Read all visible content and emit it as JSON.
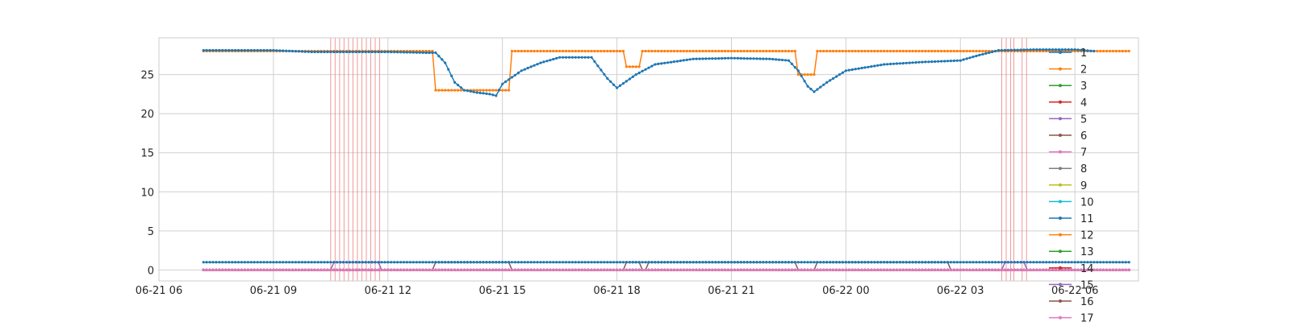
{
  "chart_data": {
    "type": "line",
    "title": "",
    "xlabel": "",
    "ylabel": "",
    "x_axis": {
      "type": "time",
      "range": [
        "2024-06-21 06:00",
        "2024-06-22 07:40"
      ],
      "tick_values": [
        "2024-06-21 06:00",
        "2024-06-21 09:00",
        "2024-06-21 12:00",
        "2024-06-21 15:00",
        "2024-06-21 18:00",
        "2024-06-21 21:00",
        "2024-06-22 00:00",
        "2024-06-22 03:00",
        "2024-06-22 06:00"
      ],
      "tick_labels": [
        "06-21 06",
        "06-21 09",
        "06-21 12",
        "06-21 15",
        "06-21 18",
        "06-21 21",
        "06-22 00",
        "06-22 03",
        "06-22 06"
      ]
    },
    "y_axis": {
      "range": [
        -1.4,
        29.7
      ],
      "tick_values": [
        0,
        5,
        10,
        15,
        20,
        25
      ],
      "tick_labels": [
        "0",
        "5",
        "10",
        "15",
        "20",
        "25"
      ]
    },
    "grid": true,
    "legend_placement": "right",
    "vertical_markers": {
      "color": "#f08080",
      "times": [
        "2024-06-21 10:30",
        "2024-06-21 10:37",
        "2024-06-21 10:44",
        "2024-06-21 10:51",
        "2024-06-21 10:58",
        "2024-06-21 11:05",
        "2024-06-21 11:12",
        "2024-06-21 11:19",
        "2024-06-21 11:26",
        "2024-06-21 11:33",
        "2024-06-21 11:40",
        "2024-06-21 11:47",
        "2024-06-22 04:05",
        "2024-06-22 04:12",
        "2024-06-22 04:19",
        "2024-06-22 04:24",
        "2024-06-22 04:37",
        "2024-06-22 04:44"
      ]
    },
    "series": [
      {
        "name": "1",
        "color": "#1f77b4",
        "points": [
          [
            "2024-06-21 07:10",
            28.1
          ],
          [
            "2024-06-21 09:00",
            28.1
          ],
          [
            "2024-06-21 10:00",
            27.9
          ],
          [
            "2024-06-21 12:00",
            27.9
          ],
          [
            "2024-06-21 13:00",
            27.8
          ],
          [
            "2024-06-21 13:15",
            27.8
          ],
          [
            "2024-06-21 13:30",
            26.5
          ],
          [
            "2024-06-21 13:45",
            24.0
          ],
          [
            "2024-06-21 14:00",
            23.0
          ],
          [
            "2024-06-21 14:20",
            22.7
          ],
          [
            "2024-06-21 14:40",
            22.5
          ],
          [
            "2024-06-21 14:50",
            22.3
          ],
          [
            "2024-06-21 15:00",
            23.8
          ],
          [
            "2024-06-21 15:30",
            25.5
          ],
          [
            "2024-06-21 16:00",
            26.5
          ],
          [
            "2024-06-21 16:30",
            27.2
          ],
          [
            "2024-06-21 17:00",
            27.2
          ],
          [
            "2024-06-21 17:20",
            27.2
          ],
          [
            "2024-06-21 17:45",
            24.5
          ],
          [
            "2024-06-21 18:00",
            23.3
          ],
          [
            "2024-06-21 18:30",
            25.0
          ],
          [
            "2024-06-21 19:00",
            26.3
          ],
          [
            "2024-06-21 20:00",
            27.0
          ],
          [
            "2024-06-21 21:00",
            27.1
          ],
          [
            "2024-06-21 22:00",
            27.0
          ],
          [
            "2024-06-21 22:30",
            26.8
          ],
          [
            "2024-06-21 22:45",
            25.5
          ],
          [
            "2024-06-21 23:00",
            23.5
          ],
          [
            "2024-06-21 23:10",
            22.8
          ],
          [
            "2024-06-21 23:30",
            24.0
          ],
          [
            "2024-06-22 00:00",
            25.5
          ],
          [
            "2024-06-22 01:00",
            26.3
          ],
          [
            "2024-06-22 02:00",
            26.6
          ],
          [
            "2024-06-22 03:00",
            26.8
          ],
          [
            "2024-06-22 03:30",
            27.5
          ],
          [
            "2024-06-22 04:00",
            28.1
          ],
          [
            "2024-06-22 05:00",
            28.2
          ],
          [
            "2024-06-22 06:00",
            28.2
          ],
          [
            "2024-06-22 06:30",
            28.0
          ]
        ]
      },
      {
        "name": "2",
        "color": "#ff7f0e",
        "points": [
          [
            "2024-06-21 07:10",
            28.0
          ],
          [
            "2024-06-21 13:10",
            28.0
          ],
          [
            "2024-06-21 13:15",
            23.0
          ],
          [
            "2024-06-21 15:10",
            23.0
          ],
          [
            "2024-06-21 15:15",
            28.0
          ],
          [
            "2024-06-21 18:10",
            28.0
          ],
          [
            "2024-06-21 18:15",
            26.0
          ],
          [
            "2024-06-21 18:35",
            26.0
          ],
          [
            "2024-06-21 18:40",
            28.0
          ],
          [
            "2024-06-21 22:40",
            28.0
          ],
          [
            "2024-06-21 22:45",
            25.0
          ],
          [
            "2024-06-21 23:10",
            25.0
          ],
          [
            "2024-06-21 23:15",
            28.0
          ],
          [
            "2024-06-22 07:25",
            28.0
          ]
        ]
      },
      {
        "name": "3",
        "color": "#2ca02c",
        "points": [
          [
            "2024-06-21 07:10",
            0
          ],
          [
            "2024-06-22 07:25",
            0
          ]
        ]
      },
      {
        "name": "4",
        "color": "#d62728",
        "points": [
          [
            "2024-06-21 07:10",
            0
          ],
          [
            "2024-06-22 07:25",
            0
          ]
        ]
      },
      {
        "name": "5",
        "color": "#9467bd",
        "points": [
          [
            "2024-06-21 07:10",
            0
          ],
          [
            "2024-06-21 10:30",
            0
          ],
          [
            "2024-06-21 10:35",
            1
          ],
          [
            "2024-06-21 11:45",
            1
          ],
          [
            "2024-06-21 11:50",
            0
          ],
          [
            "2024-06-22 04:05",
            0
          ],
          [
            "2024-06-22 04:10",
            1
          ],
          [
            "2024-06-22 04:40",
            1
          ],
          [
            "2024-06-22 04:45",
            0
          ],
          [
            "2024-06-22 07:25",
            0
          ]
        ]
      },
      {
        "name": "6",
        "color": "#8c564b",
        "points": [
          [
            "2024-06-21 07:10",
            0
          ],
          [
            "2024-06-21 13:10",
            0
          ],
          [
            "2024-06-21 13:15",
            1
          ],
          [
            "2024-06-21 15:10",
            1
          ],
          [
            "2024-06-21 15:15",
            0
          ],
          [
            "2024-06-21 18:10",
            0
          ],
          [
            "2024-06-21 18:15",
            1
          ],
          [
            "2024-06-21 18:35",
            1
          ],
          [
            "2024-06-21 18:40",
            0
          ],
          [
            "2024-06-21 18:45",
            0
          ],
          [
            "2024-06-21 18:50",
            1
          ],
          [
            "2024-06-21 22:40",
            1
          ],
          [
            "2024-06-21 22:45",
            0
          ],
          [
            "2024-06-21 23:10",
            0
          ],
          [
            "2024-06-21 23:15",
            1
          ],
          [
            "2024-06-22 02:40",
            1
          ],
          [
            "2024-06-22 02:45",
            0
          ],
          [
            "2024-06-22 07:25",
            0
          ]
        ]
      },
      {
        "name": "7",
        "color": "#e377c2",
        "points": [
          [
            "2024-06-21 07:10",
            0
          ],
          [
            "2024-06-22 07:25",
            0
          ]
        ]
      },
      {
        "name": "8",
        "color": "#7f7f7f",
        "points": [
          [
            "2024-06-21 07:10",
            0
          ],
          [
            "2024-06-22 07:25",
            0
          ]
        ]
      },
      {
        "name": "9",
        "color": "#bcbd22",
        "points": [
          [
            "2024-06-21 07:10",
            0
          ],
          [
            "2024-06-22 07:25",
            0
          ]
        ]
      },
      {
        "name": "10",
        "color": "#17becf",
        "points": [
          [
            "2024-06-21 07:10",
            0
          ],
          [
            "2024-06-22 07:25",
            0
          ]
        ]
      },
      {
        "name": "11",
        "color": "#1f77b4",
        "points": [
          [
            "2024-06-21 07:10",
            1
          ],
          [
            "2024-06-21 13:10",
            1
          ],
          [
            "2024-06-21 13:15",
            1
          ],
          [
            "2024-06-22 07:25",
            1
          ]
        ]
      },
      {
        "name": "12",
        "color": "#ff7f0e",
        "points": [
          [
            "2024-06-21 07:10",
            0
          ],
          [
            "2024-06-22 07:25",
            0
          ]
        ]
      },
      {
        "name": "13",
        "color": "#2ca02c",
        "points": [
          [
            "2024-06-21 07:10",
            0
          ],
          [
            "2024-06-22 07:25",
            0
          ]
        ]
      },
      {
        "name": "14",
        "color": "#d62728",
        "points": [
          [
            "2024-06-21 07:10",
            0
          ],
          [
            "2024-06-22 07:25",
            0
          ]
        ]
      },
      {
        "name": "15",
        "color": "#9467bd",
        "points": [
          [
            "2024-06-21 07:10",
            0
          ],
          [
            "2024-06-22 07:25",
            0
          ]
        ]
      },
      {
        "name": "16",
        "color": "#8c564b",
        "points": [
          [
            "2024-06-21 07:10",
            0
          ],
          [
            "2024-06-22 07:25",
            0
          ]
        ]
      },
      {
        "name": "17",
        "color": "#e377c2",
        "points": [
          [
            "2024-06-21 07:10",
            0
          ],
          [
            "2024-06-22 07:25",
            0
          ]
        ]
      }
    ]
  }
}
